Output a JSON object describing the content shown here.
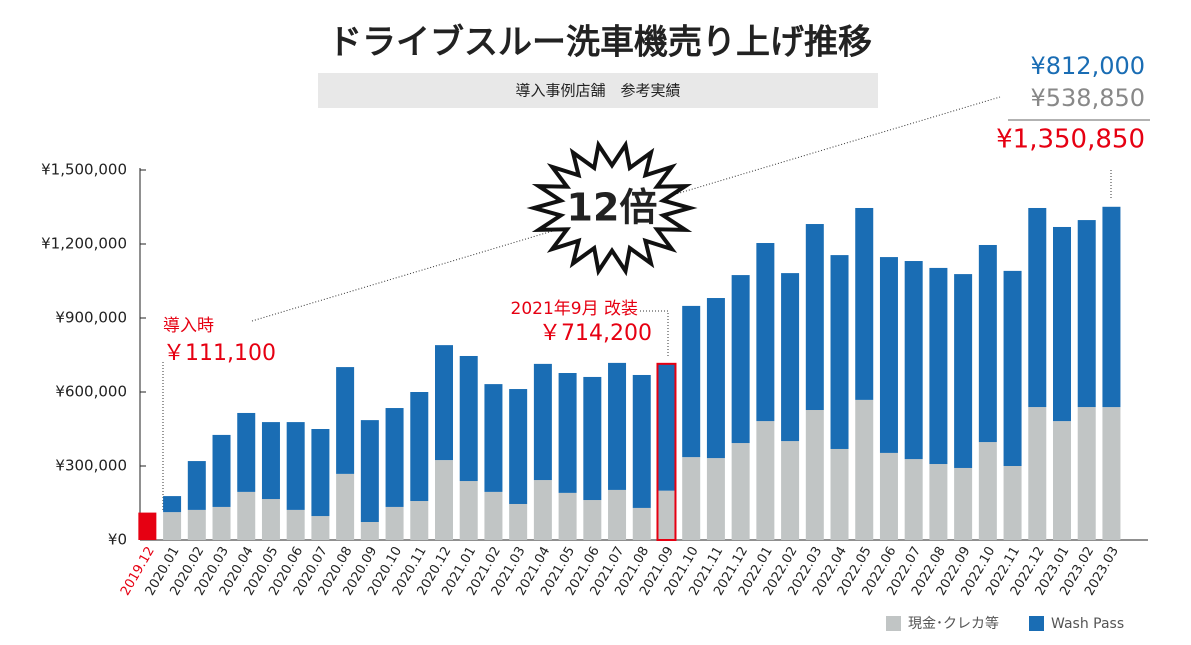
{
  "chart_data": {
    "type": "bar",
    "stacked": true,
    "title": "ドライブスルー洗車機売り上げ推移",
    "subtitle": "導入事例店舗　参考実績",
    "categories": [
      "2019.12",
      "2020.01",
      "2020.02",
      "2020.03",
      "2020.04",
      "2020.05",
      "2020.06",
      "2020.07",
      "2020.08",
      "2020.09",
      "2020.10",
      "2020.11",
      "2020.12",
      "2021.01",
      "2021.02",
      "2021.03",
      "2021.04",
      "2021.05",
      "2021.06",
      "2021.07",
      "2021.08",
      "2021.09",
      "2021.10",
      "2021.11",
      "2021.12",
      "2022.01",
      "2022.02",
      "2022.03",
      "2022.04",
      "2022.05",
      "2022.06",
      "2022.07",
      "2022.08",
      "2022.09",
      "2022.10",
      "2022.11",
      "2022.12",
      "2023.01",
      "2023.02",
      "2023.03"
    ],
    "series": [
      {
        "name": "現金･クレカ等",
        "color": "#c1c5c5",
        "values": [
          111100,
          113000,
          122000,
          134000,
          195000,
          166000,
          122000,
          97000,
          268000,
          73000,
          134000,
          158000,
          324000,
          239000,
          195000,
          146000,
          243000,
          191000,
          162000,
          203000,
          130000,
          200000,
          336000,
          332000,
          393000,
          482000,
          401000,
          527000,
          369000,
          568000,
          353000,
          328000,
          308000,
          292000,
          397000,
          300000,
          539000,
          482000,
          539000,
          538850
        ]
      },
      {
        "name": "Wash Pass",
        "color": "#1a6db4",
        "values": [
          null,
          65000,
          198000,
          292000,
          320000,
          312000,
          356000,
          353000,
          433000,
          413000,
          401000,
          442000,
          466000,
          507000,
          437000,
          466000,
          471000,
          486000,
          499000,
          515000,
          539000,
          514200,
          613000,
          649000,
          681000,
          722000,
          681000,
          754000,
          786000,
          778000,
          794000,
          803000,
          795000,
          786000,
          799000,
          791000,
          807000,
          787000,
          758000,
          812000
        ]
      }
    ],
    "highlight_fill": {
      "index": 0,
      "color": "#e60012"
    },
    "highlight_outline": {
      "index": 21,
      "color": "#e60012"
    },
    "ylim": [
      0,
      1500000
    ],
    "yticks": [
      {
        "value": 0,
        "label": "¥0"
      },
      {
        "value": 300000,
        "label": "¥300,000"
      },
      {
        "value": 600000,
        "label": "¥600,000"
      },
      {
        "value": 900000,
        "label": "¥900,000"
      },
      {
        "value": 1200000,
        "label": "¥1,200,000"
      },
      {
        "value": 1500000,
        "label": "¥1,500,000"
      }
    ],
    "grid": false,
    "legend": "bottom-right",
    "annotations": {
      "multiplier": "12倍",
      "intro": "導入時",
      "intro_value": "￥111,100",
      "renovation": "2021年9月 改装",
      "renovation_value": "￥714,200",
      "latest_wash": "¥812,000",
      "latest_cash": "¥538,850",
      "latest_total": "¥1,350,850"
    }
  }
}
